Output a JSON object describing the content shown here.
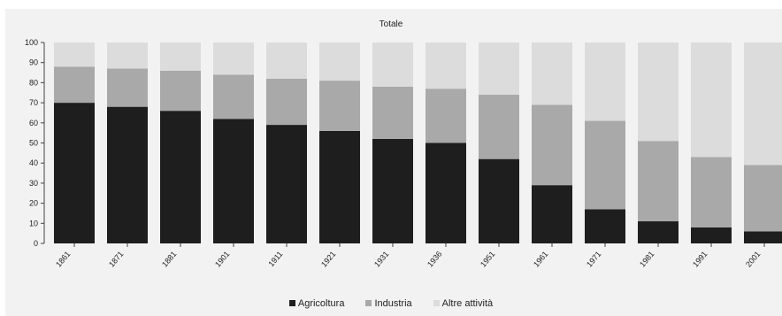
{
  "chart_data": {
    "type": "bar",
    "stacked": true,
    "title": "Totale",
    "categories": [
      "1861",
      "1871",
      "1881",
      "1901",
      "1911",
      "1921",
      "1931",
      "1936",
      "1951",
      "1961",
      "1971",
      "1981",
      "1991",
      "2001"
    ],
    "series": [
      {
        "name": "Agricoltura",
        "color": "#1e1e1e",
        "values": [
          70,
          68,
          66,
          62,
          59,
          56,
          52,
          50,
          42,
          29,
          17,
          11,
          8,
          6
        ]
      },
      {
        "name": "Industria",
        "color": "#a9a9a9",
        "values": [
          18,
          19,
          20,
          22,
          23,
          25,
          26,
          27,
          32,
          40,
          44,
          40,
          35,
          33
        ]
      },
      {
        "name": "Altre attività",
        "color": "#dcdcdc",
        "values": [
          12,
          13,
          14,
          16,
          18,
          19,
          22,
          23,
          26,
          31,
          39,
          49,
          57,
          61
        ]
      }
    ],
    "ylim": [
      0,
      100
    ],
    "yticks": [
      0,
      10,
      20,
      30,
      40,
      50,
      60,
      70,
      80,
      90,
      100
    ],
    "grid": false,
    "legend_position": "bottom"
  }
}
